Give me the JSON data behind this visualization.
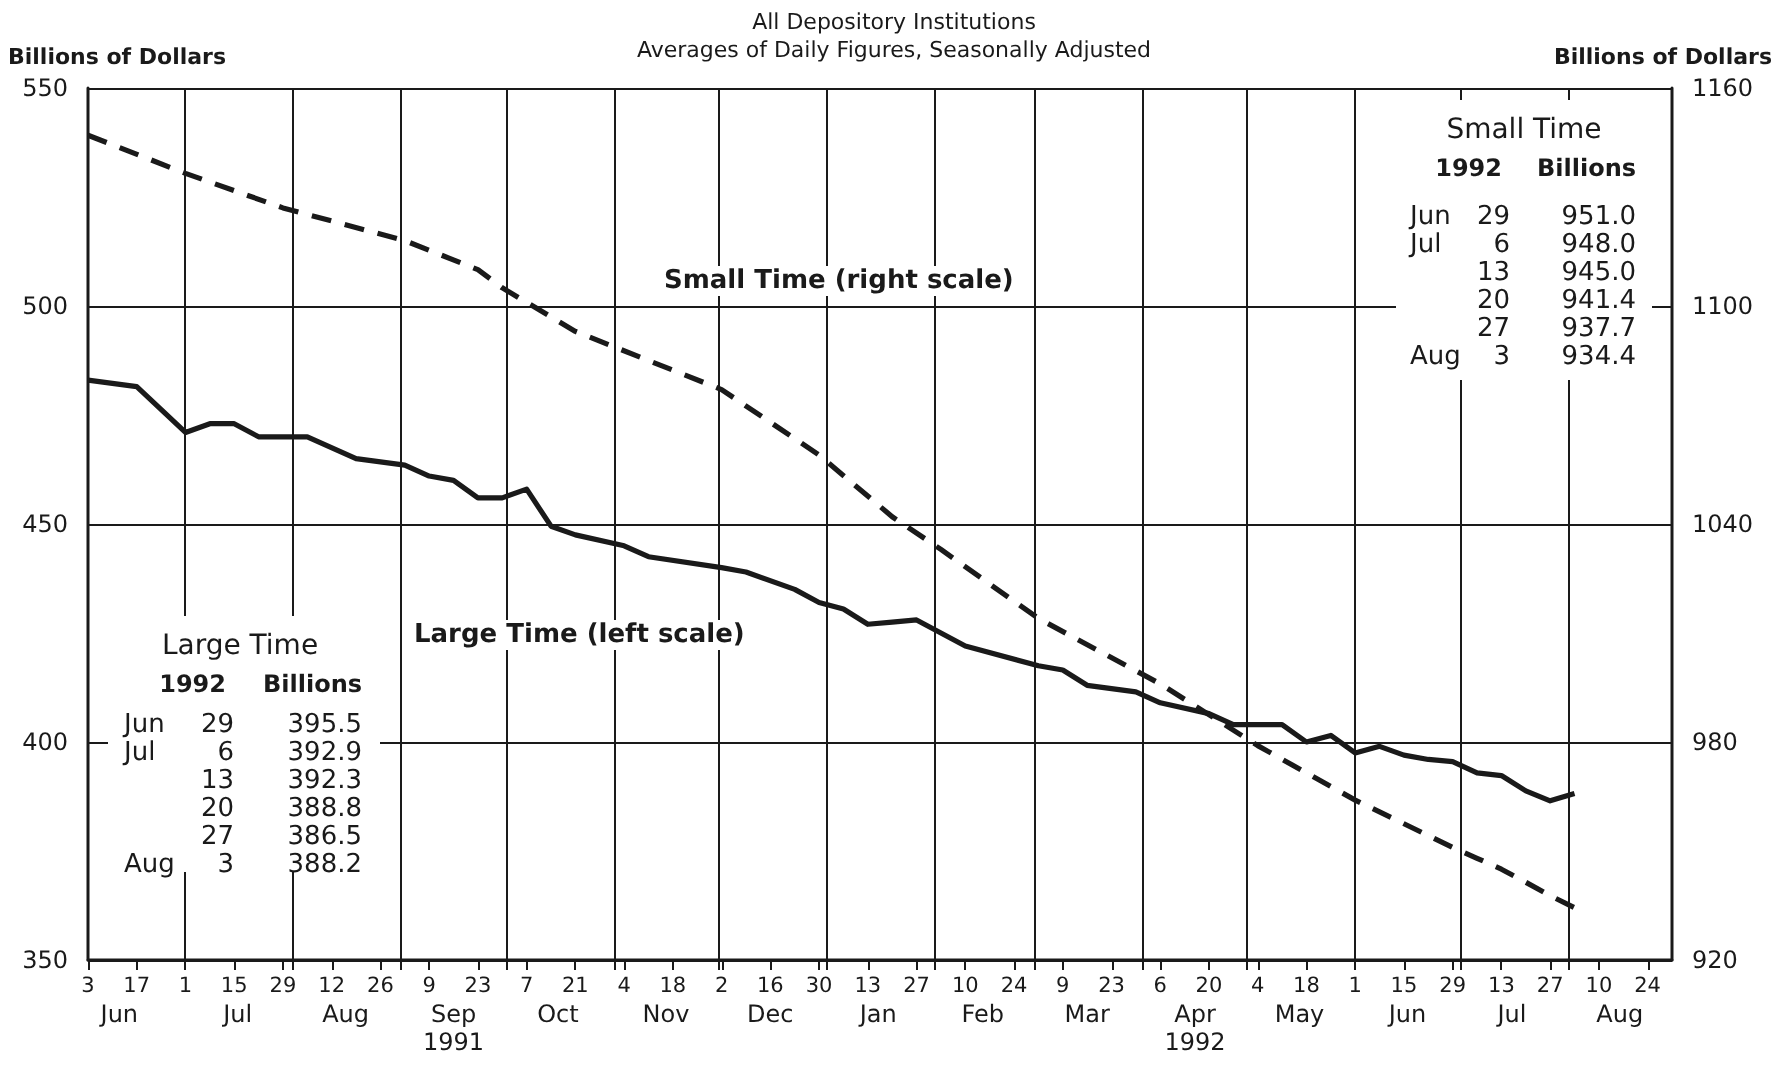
{
  "chart_data": {
    "type": "line",
    "subtitle": "All Depository Institutions\nAverages of Daily Figures, Seasonally Adjusted",
    "ylabel": "Billions of Dollars",
    "y2label": "Billions of Dollars",
    "xlim": [
      "1991-06-03",
      "1992-08-31"
    ],
    "xticks": [
      {
        "value": "1991-06-03",
        "label": "3"
      },
      {
        "value": "1991-06-17",
        "label": "17"
      },
      {
        "value": "1991-07-01",
        "label": "1"
      },
      {
        "value": "1991-07-15",
        "label": "15"
      },
      {
        "value": "1991-07-29",
        "label": "29"
      },
      {
        "value": "1991-08-01",
        "label": null
      },
      {
        "value": "1991-08-12",
        "label": "12"
      },
      {
        "value": "1991-08-26",
        "label": "26"
      },
      {
        "value": "1991-09-01",
        "label": null
      },
      {
        "value": "1991-09-09",
        "label": "9"
      },
      {
        "value": "1991-09-23",
        "label": "23"
      },
      {
        "value": "1991-10-01",
        "label": null
      },
      {
        "value": "1991-10-07",
        "label": "7"
      },
      {
        "value": "1991-10-21",
        "label": "21"
      },
      {
        "value": "1991-11-01",
        "label": null
      },
      {
        "value": "1991-11-04",
        "label": "4"
      },
      {
        "value": "1991-11-18",
        "label": "18"
      },
      {
        "value": "1991-12-01",
        "label": null
      },
      {
        "value": "1991-12-02",
        "label": "2"
      },
      {
        "value": "1991-12-16",
        "label": "16"
      },
      {
        "value": "1991-12-30",
        "label": "30"
      },
      {
        "value": "1992-01-01",
        "label": null
      },
      {
        "value": "1992-01-13",
        "label": "13"
      },
      {
        "value": "1992-01-27",
        "label": "27"
      },
      {
        "value": "1992-02-01",
        "label": null
      },
      {
        "value": "1992-02-10",
        "label": "10"
      },
      {
        "value": "1992-02-24",
        "label": "24"
      },
      {
        "value": "1992-03-01",
        "label": null
      },
      {
        "value": "1992-03-09",
        "label": "9"
      },
      {
        "value": "1992-03-23",
        "label": "23"
      },
      {
        "value": "1992-04-01",
        "label": null
      },
      {
        "value": "1992-04-06",
        "label": "6"
      },
      {
        "value": "1992-04-20",
        "label": "20"
      },
      {
        "value": "1992-05-01",
        "label": null
      },
      {
        "value": "1992-05-04",
        "label": "4"
      },
      {
        "value": "1992-05-18",
        "label": "18"
      },
      {
        "value": "1992-06-01",
        "label": "1"
      },
      {
        "value": "1992-06-15",
        "label": "15"
      },
      {
        "value": "1992-06-29",
        "label": "29"
      },
      {
        "value": "1992-07-01",
        "label": null
      },
      {
        "value": "1992-07-13",
        "label": "13"
      },
      {
        "value": "1992-07-27",
        "label": "27"
      },
      {
        "value": "1992-08-01",
        "label": null
      },
      {
        "value": "1992-08-10",
        "label": "10"
      },
      {
        "value": "1992-08-24",
        "label": "24"
      }
    ],
    "x2lim": [
      "1991-06-03",
      "1992-08-31"
    ],
    "x2ticks": [
      {
        "value": "1991-06-12",
        "label": "Jun"
      },
      {
        "value": "1991-07-16",
        "label": "Jul"
      },
      {
        "value": "1991-08-16",
        "label": "Aug"
      },
      {
        "value": "1991-09-16",
        "label": "Sep\n1991"
      },
      {
        "value": "1991-10-16",
        "label": "Oct"
      },
      {
        "value": "1991-11-16",
        "label": "Nov"
      },
      {
        "value": "1991-12-16",
        "label": "Dec"
      },
      {
        "value": "1992-01-16",
        "label": "Jan"
      },
      {
        "value": "1992-02-15",
        "label": "Feb"
      },
      {
        "value": "1992-03-16",
        "label": "Mar"
      },
      {
        "value": "1992-04-16",
        "label": "Apr\n1992"
      },
      {
        "value": "1992-05-16",
        "label": "May"
      },
      {
        "value": "1992-06-16",
        "label": "Jun"
      },
      {
        "value": "1992-07-16",
        "label": "Jul"
      },
      {
        "value": "1992-08-16",
        "label": "Aug"
      }
    ],
    "ylim": [
      350,
      550
    ],
    "yticks": [
      350,
      400,
      450,
      500,
      550
    ],
    "y2lim": [
      920,
      1160
    ],
    "y2ticks": [
      920,
      980,
      1040,
      1100,
      1160
    ],
    "grid": true,
    "legend": false,
    "marker": "none",
    "series": [
      {
        "name": "Large Time (left scale)",
        "color": "#1a1a1a",
        "line_style": "solid",
        "x": [
          "1991-06-03",
          "1991-06-17",
          "1991-07-01",
          "1991-07-08",
          "1991-07-15",
          "1991-07-22",
          "1991-08-05",
          "1991-08-19",
          "1991-09-02",
          "1991-09-09",
          "1991-09-16",
          "1991-09-23",
          "1991-09-30",
          "1991-10-07",
          "1991-10-14",
          "1991-10-21",
          "1991-11-04",
          "1991-11-11",
          "1991-12-02",
          "1991-12-09",
          "1991-12-23",
          "1991-12-30",
          "1992-01-06",
          "1992-01-13",
          "1992-01-20",
          "1992-01-27",
          "1992-02-10",
          "1992-03-02",
          "1992-03-09",
          "1992-03-16",
          "1992-03-30",
          "1992-04-06",
          "1992-04-20",
          "1992-04-27",
          "1992-05-11",
          "1992-05-18",
          "1992-05-25",
          "1992-06-01",
          "1992-06-08",
          "1992-06-15",
          "1992-06-22",
          "1992-06-29",
          "1992-07-06",
          "1992-07-13",
          "1992-07-20",
          "1992-07-27",
          "1992-08-03"
        ],
        "values": [
          483,
          481.5,
          471,
          473,
          473,
          470,
          470,
          465,
          463.5,
          461,
          460,
          456,
          456,
          458,
          449.5,
          447.5,
          445,
          442.5,
          440,
          439,
          435,
          432,
          430.5,
          427,
          427.5,
          428,
          422,
          417.5,
          416.5,
          413,
          411.5,
          409,
          406.5,
          404,
          404,
          400,
          401.5,
          397.5,
          399,
          397,
          396,
          395.5,
          392.9,
          392.3,
          388.8,
          386.5,
          388.2
        ]
      },
      {
        "name": "Small Time (right scale)",
        "color": "#1a1a1a",
        "line_style": "dashed",
        "axis": "y2",
        "x": [
          "1991-06-03",
          "1991-07-01",
          "1991-07-29",
          "1991-09-02",
          "1991-09-23",
          "1991-09-30",
          "1991-10-21",
          "1991-12-02",
          "1991-12-30",
          "1992-01-20",
          "1992-02-03",
          "1992-03-02",
          "1992-04-06",
          "1992-05-04",
          "1992-06-01",
          "1992-06-29",
          "1992-07-06",
          "1992-07-13",
          "1992-07-20",
          "1992-07-27",
          "1992-08-03"
        ],
        "values": [
          1147,
          1136.5,
          1127,
          1118,
          1110,
          1105,
          1093,
          1077,
          1059,
          1042,
          1033,
          1014,
          996,
          979,
          964,
          951.0,
          948.0,
          945.0,
          941.4,
          937.7,
          934.4
        ]
      }
    ],
    "annotations": [
      "Large Time\n1992 Billions\nJun 29 395.5\nJul 6 392.9\n13 392.3\n20 388.8\n27 386.5\nAug 3 388.2",
      "Small Time\n1992 Billions\nJun 29 951.0\nJul 6 948.0\n13 945.0\n20 941.4\n27 937.7\nAug 3 934.4"
    ]
  }
}
